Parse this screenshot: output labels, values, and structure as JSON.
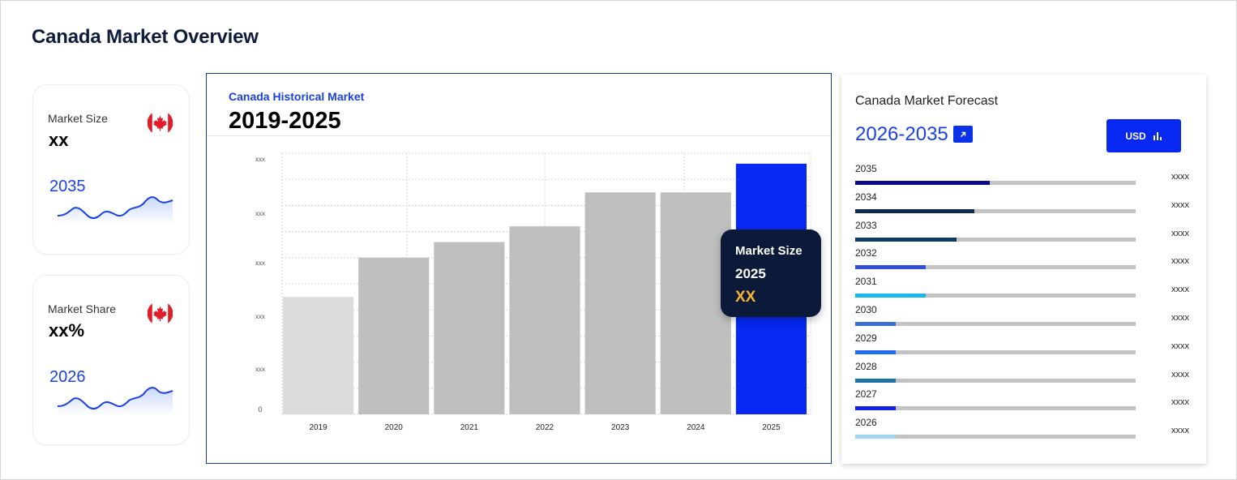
{
  "page": {
    "title": "Canada Market Overview"
  },
  "kpis": [
    {
      "label": "Market Size",
      "value": "xx",
      "year": "2035",
      "flag": "canada-flag-icon"
    },
    {
      "label": "Market Share",
      "value": "xx%",
      "year": "2026",
      "flag": "canada-flag-icon"
    }
  ],
  "historical": {
    "subtitle": "Canada Historical Market",
    "range": "2019-2025",
    "tooltip": {
      "label": "Market Size",
      "year": "2025",
      "value": "XX"
    }
  },
  "chart_data": {
    "type": "bar",
    "categories": [
      "2019",
      "2020",
      "2021",
      "2022",
      "2023",
      "2024",
      "2025"
    ],
    "values": [
      45,
      60,
      66,
      72,
      85,
      85,
      96
    ],
    "ylim": [
      0,
      100
    ],
    "ytick_labels": [
      "0",
      "xxx",
      "xxx",
      "xxx",
      "xxx",
      "xxx"
    ],
    "bar_colors": [
      "#dcdcdc",
      "#bfbfbf",
      "#bfbfbf",
      "#bfbfbf",
      "#bfbfbf",
      "#bfbfbf",
      "#0628f0"
    ],
    "grid": true,
    "title": "",
    "xlabel": "",
    "ylabel": ""
  },
  "forecast": {
    "title": "Canada Market Forecast",
    "range": "2026-2035",
    "link_icon": "external-link-icon",
    "currency_button": {
      "label": "USD",
      "icon": "bar-chart-icon"
    },
    "rows": [
      {
        "year": "2035",
        "value": "xxxx",
        "level": 0.48,
        "color": "#0a0a86"
      },
      {
        "year": "2034",
        "value": "xxxx",
        "level": 0.425,
        "color": "#0e2a4f"
      },
      {
        "year": "2033",
        "value": "xxxx",
        "level": 0.36,
        "color": "#0f3a62"
      },
      {
        "year": "2032",
        "value": "xxxx",
        "level": 0.25,
        "color": "#2f52d9"
      },
      {
        "year": "2031",
        "value": "xxxx",
        "level": 0.25,
        "color": "#1ab8ea"
      },
      {
        "year": "2030",
        "value": "xxxx",
        "level": 0.145,
        "color": "#3c70cf"
      },
      {
        "year": "2029",
        "value": "xxxx",
        "level": 0.145,
        "color": "#1d6bef"
      },
      {
        "year": "2028",
        "value": "xxxx",
        "level": 0.145,
        "color": "#1b73a6"
      },
      {
        "year": "2027",
        "value": "xxxx",
        "level": 0.145,
        "color": "#1020e6"
      },
      {
        "year": "2026",
        "value": "xxxx",
        "level": 0.145,
        "color": "#9fd8ee"
      }
    ]
  }
}
